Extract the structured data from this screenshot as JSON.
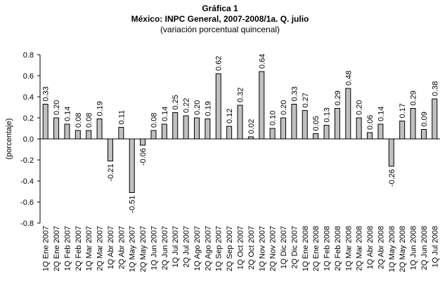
{
  "chart_data": {
    "type": "bar",
    "title": "Gráfica 1",
    "subtitle": "México: INPC General, 2007-2008/1a. Q. julio",
    "subtitle2": "(variación porcentual quincenal)",
    "ylabel": "(porcentaje)",
    "xlabel": "",
    "ylim": [
      -0.8,
      0.8
    ],
    "yticks": [
      "0.8",
      "0.6",
      "0.4",
      "0.2",
      "0.0",
      "-0.2",
      "-0.4",
      "-0.6",
      "-0.8"
    ],
    "grid": false,
    "bar_color": "#c0c0c0",
    "categories": [
      "1Q Ene 2007",
      "2Q Ene 2007",
      "1Q Feb 2007",
      "2Q Feb 2007",
      "1Q Mar 2007",
      "2Q Mar 2007",
      "1Q Abr 2007",
      "2Q Abr 2007",
      "1Q May 2007",
      "2Q May 2007",
      "1Q Jun 2007",
      "2Q Jun 2007",
      "1Q Jul 2007",
      "2Q Jul 2007",
      "1Q Ago 2007",
      "2Q Ago 2007",
      "1Q Sep 2007",
      "2Q Sep 2007",
      "1Q Oct 2007",
      "2Q Oct 2007",
      "1Q Nov 2007",
      "2Q Nov 2007",
      "1Q Dic 2007",
      "2Q Dic 2007",
      "1Q Ene 2008",
      "2Q Ene 2008",
      "1Q Feb 2008",
      "2Q Feb 2008",
      "1Q Mar 2008",
      "2Q Mar 2008",
      "1Q Abr 2008",
      "2Q Abr 2008",
      "1Q May 2008",
      "2Q May 2008",
      "1Q Jun 2008",
      "2Q Jun 2008",
      "1Q Jul 2008"
    ],
    "values": [
      0.33,
      0.2,
      0.14,
      0.08,
      0.08,
      0.19,
      -0.21,
      0.11,
      -0.51,
      -0.06,
      0.08,
      0.14,
      0.25,
      0.22,
      0.2,
      0.19,
      0.62,
      0.12,
      0.32,
      0.02,
      0.64,
      0.1,
      0.2,
      0.33,
      0.27,
      0.05,
      0.13,
      0.29,
      0.48,
      0.2,
      0.06,
      0.14,
      -0.26,
      0.17,
      0.29,
      0.09,
      0.38
    ],
    "data_labels": [
      "0.33",
      "0.20",
      "0.14",
      "0.08",
      "0.08",
      "0.19",
      "-0.21",
      "0.11",
      "-0.51",
      "-0.06",
      "0.08",
      "0.14",
      "0.25",
      "0.22",
      "0.20",
      "0.19",
      "0.62",
      "0.12",
      "0.32",
      "0.02",
      "0.64",
      "0.10",
      "0.20",
      "0.33",
      "0.27",
      "0.05",
      "0.13",
      "0.29",
      "0.48",
      "0.20",
      "0.06",
      "0.14",
      "-0.26",
      "0.17",
      "0.29",
      "0.09",
      "0.38"
    ]
  }
}
